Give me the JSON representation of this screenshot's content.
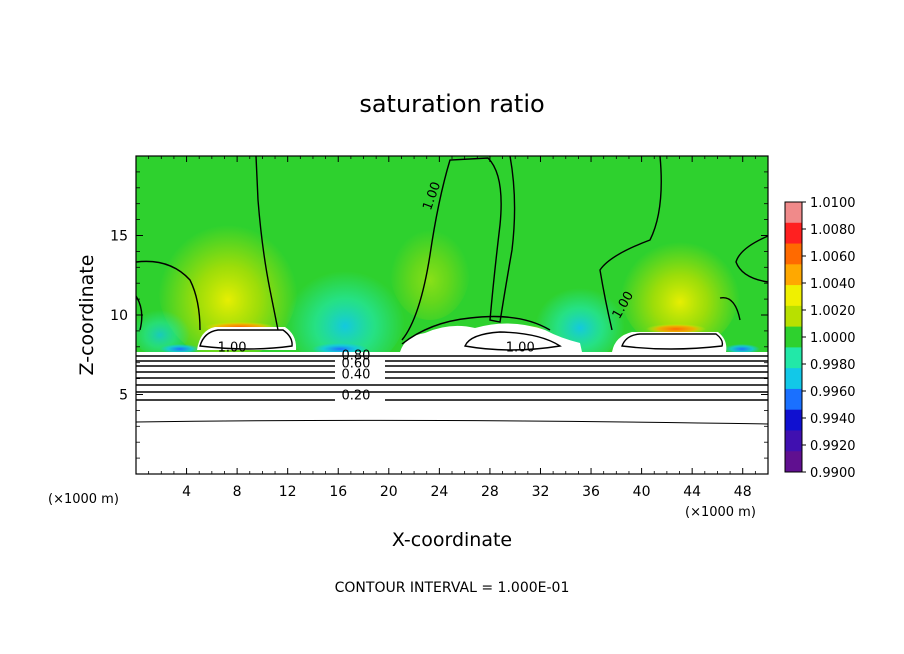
{
  "chart_data": {
    "type": "heatmap",
    "title": "saturation ratio",
    "xlabel": "X-coordinate",
    "ylabel": "Z-coordinate",
    "x_unit_left": "(×1000 m)",
    "x_unit_right": "(×1000 m)",
    "xlim": [
      0,
      50
    ],
    "ylim": [
      0,
      20
    ],
    "x_ticks": [
      4,
      8,
      12,
      16,
      20,
      24,
      28,
      32,
      36,
      40,
      44,
      48
    ],
    "y_ticks": [
      5,
      10,
      15
    ],
    "colorbar": {
      "labels": [
        "1.0100",
        "1.0080",
        "1.0060",
        "1.0040",
        "1.0020",
        "1.0000",
        "0.9980",
        "0.9960",
        "0.9940",
        "0.9920",
        "0.9900"
      ],
      "range": [
        0.99,
        1.01
      ],
      "colors": [
        "#f08a8a",
        "#ff2020",
        "#ff6a00",
        "#ffa800",
        "#f0f000",
        "#b8e000",
        "#2ed12e",
        "#22e8a8",
        "#12c8e8",
        "#1a70ff",
        "#1010d0",
        "#4010b0",
        "#601090"
      ]
    },
    "contour_labels": [
      {
        "text": "1.00",
        "x": 23.7,
        "y": 17.4
      },
      {
        "text": "1.00",
        "x": 38.8,
        "y": 10.5
      },
      {
        "text": "1.00",
        "x": 7.6,
        "y": 7.7
      },
      {
        "text": "1.00",
        "x": 30.4,
        "y": 7.7
      },
      {
        "text": "0.80",
        "x": 17.4,
        "y": 7.2
      },
      {
        "text": "0.60",
        "x": 17.4,
        "y": 6.7
      },
      {
        "text": "0.40",
        "x": 17.4,
        "y": 6.0
      },
      {
        "text": "0.20",
        "x": 17.4,
        "y": 4.7
      }
    ],
    "footer": "CONTOUR INTERVAL = 1.000E-01"
  }
}
